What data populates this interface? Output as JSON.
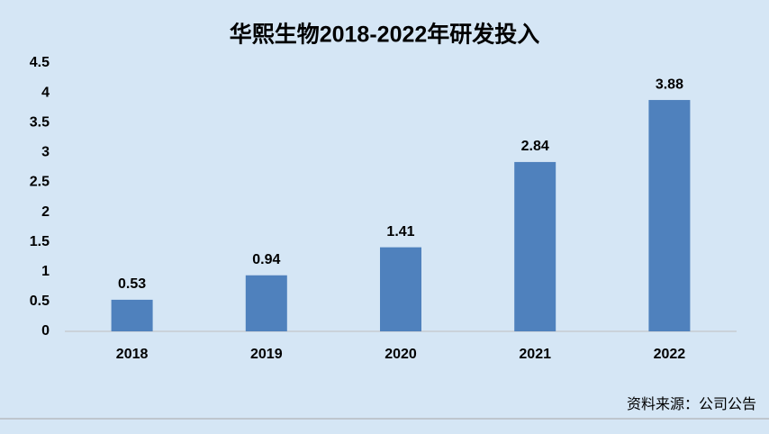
{
  "chart_data": {
    "type": "bar",
    "title": "华熙生物2018-2022年研发投入",
    "categories": [
      "2018",
      "2019",
      "2020",
      "2021",
      "2022"
    ],
    "values": [
      0.53,
      0.94,
      1.41,
      2.84,
      3.88
    ],
    "color": "#4f81bd",
    "ylim": [
      0,
      4.5
    ],
    "yticks": [
      0,
      0.5,
      1,
      1.5,
      2,
      2.5,
      3,
      3.5,
      4,
      4.5
    ],
    "grid": false,
    "source": "资料来源：公司公告"
  }
}
